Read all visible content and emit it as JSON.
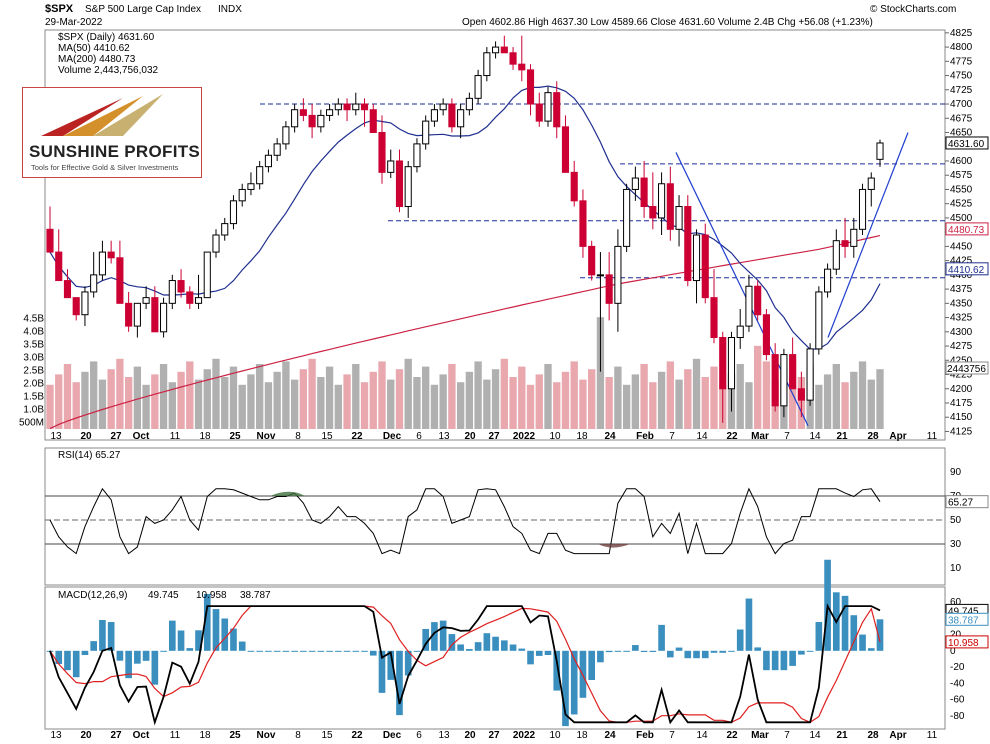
{
  "header": {
    "symbol": "$SPX",
    "description": "S&P 500 Large Cap Index",
    "exchange": "INDX",
    "date": "29-Mar-2022",
    "ohlc": "Open 4602.86  High 4637.30  Low 4589.66  Close 4631.60  Volume 2.4B  Chg +56.08 (+1.23%)",
    "credit": "© StockCharts.com"
  },
  "legend": {
    "price": "$SPX (Daily) 4631.60",
    "ma50": "MA(50) 4410.62",
    "ma200": "MA(200) 4480.73",
    "volume": "Volume 2,443,756,032"
  },
  "logo": {
    "name": "SUNSHINE PROFITS",
    "tagline": "Tools for Effective Gold & Silver Investments"
  },
  "colors": {
    "up": "#000000",
    "down": "#cc0033",
    "ma50": "#1f2f8f",
    "ma200": "#cc2244",
    "vol_up": "#b0b0b0",
    "vol_down": "#e8a8ae",
    "macd_hist": "#3a8fbf",
    "trend": "#1f3fcf"
  },
  "chart_data": [
    {
      "type": "candlestick",
      "title": "$SPX S&P 500 Large Cap Index INDX",
      "ylim": [
        4110,
        4830
      ],
      "y_ticks": [
        4125,
        4150,
        4175,
        4200,
        4225,
        4250,
        4275,
        4300,
        4325,
        4350,
        4375,
        4400,
        4425,
        4450,
        4475,
        4500,
        4525,
        4550,
        4575,
        4600,
        4625,
        4650,
        4675,
        4700,
        4725,
        4750,
        4775,
        4800,
        4825
      ],
      "x_tick_labels": [
        "13",
        "20",
        "27",
        "Oct",
        "11",
        "18",
        "25",
        "Nov",
        "8",
        "15",
        "22",
        "Dec",
        "6",
        "13",
        "20",
        "27",
        "2022",
        "10",
        "18",
        "24",
        "Feb",
        "7",
        "14",
        "22",
        "Mar",
        "7",
        "14",
        "21",
        "28",
        "Apr",
        "11"
      ],
      "bars": [
        [
          4480,
          4520,
          4470,
          4440
        ],
        [
          4440,
          4480,
          4430,
          4390
        ],
        [
          4390,
          4410,
          4360,
          4360
        ],
        [
          4360,
          4360,
          4320,
          4330
        ],
        [
          4330,
          4380,
          4310,
          4370
        ],
        [
          4370,
          4440,
          4360,
          4400
        ],
        [
          4400,
          4460,
          4390,
          4440
        ],
        [
          4440,
          4460,
          4420,
          4430
        ],
        [
          4430,
          4460,
          4390,
          4350
        ],
        [
          4350,
          4370,
          4300,
          4310
        ],
        [
          4310,
          4350,
          4290,
          4350
        ],
        [
          4350,
          4380,
          4340,
          4360
        ],
        [
          4360,
          4380,
          4300,
          4300
        ],
        [
          4300,
          4360,
          4290,
          4350
        ],
        [
          4350,
          4400,
          4340,
          4390
        ],
        [
          4390,
          4410,
          4360,
          4370
        ],
        [
          4370,
          4380,
          4340,
          4350
        ],
        [
          4350,
          4400,
          4340,
          4360
        ],
        [
          4360,
          4440,
          4360,
          4440
        ],
        [
          4440,
          4480,
          4430,
          4470
        ],
        [
          4470,
          4500,
          4460,
          4490
        ],
        [
          4490,
          4540,
          4480,
          4530
        ],
        [
          4530,
          4560,
          4520,
          4550
        ],
        [
          4550,
          4580,
          4540,
          4560
        ],
        [
          4560,
          4600,
          4550,
          4590
        ],
        [
          4590,
          4620,
          4580,
          4610
        ],
        [
          4610,
          4640,
          4600,
          4630
        ],
        [
          4630,
          4670,
          4620,
          4660
        ],
        [
          4660,
          4700,
          4650,
          4690
        ],
        [
          4690,
          4710,
          4670,
          4680
        ],
        [
          4680,
          4700,
          4640,
          4660
        ],
        [
          4660,
          4690,
          4650,
          4680
        ],
        [
          4680,
          4700,
          4670,
          4690
        ],
        [
          4690,
          4710,
          4680,
          4700
        ],
        [
          4700,
          4710,
          4670,
          4690
        ],
        [
          4690,
          4720,
          4680,
          4700
        ],
        [
          4700,
          4710,
          4660,
          4690
        ],
        [
          4690,
          4700,
          4650,
          4650
        ],
        [
          4650,
          4680,
          4560,
          4580
        ],
        [
          4580,
          4620,
          4570,
          4600
        ],
        [
          4600,
          4620,
          4510,
          4520
        ],
        [
          4520,
          4600,
          4500,
          4590
        ],
        [
          4590,
          4640,
          4580,
          4630
        ],
        [
          4630,
          4680,
          4620,
          4670
        ],
        [
          4670,
          4700,
          4660,
          4690
        ],
        [
          4690,
          4710,
          4680,
          4700
        ],
        [
          4700,
          4710,
          4650,
          4660
        ],
        [
          4660,
          4700,
          4640,
          4690
        ],
        [
          4690,
          4720,
          4680,
          4710
        ],
        [
          4710,
          4760,
          4700,
          4750
        ],
        [
          4750,
          4800,
          4740,
          4790
        ],
        [
          4790,
          4810,
          4780,
          4800
        ],
        [
          4800,
          4820,
          4790,
          4790
        ],
        [
          4790,
          4800,
          4760,
          4770
        ],
        [
          4770,
          4820,
          4740,
          4760
        ],
        [
          4760,
          4770,
          4680,
          4700
        ],
        [
          4700,
          4720,
          4660,
          4670
        ],
        [
          4670,
          4730,
          4660,
          4720
        ],
        [
          4720,
          4740,
          4640,
          4660
        ],
        [
          4660,
          4680,
          4580,
          4580
        ],
        [
          4580,
          4600,
          4520,
          4530
        ],
        [
          4530,
          4550,
          4430,
          4450
        ],
        [
          4450,
          4460,
          4390,
          4400
        ],
        [
          4400,
          4440,
          4230,
          4400
        ],
        [
          4400,
          4440,
          4320,
          4350
        ],
        [
          4350,
          4480,
          4300,
          4450
        ],
        [
          4450,
          4560,
          4440,
          4550
        ],
        [
          4550,
          4590,
          4530,
          4570
        ],
        [
          4570,
          4600,
          4500,
          4520
        ],
        [
          4520,
          4580,
          4480,
          4500
        ],
        [
          4500,
          4580,
          4470,
          4560
        ],
        [
          4560,
          4590,
          4460,
          4480
        ],
        [
          4480,
          4540,
          4450,
          4520
        ],
        [
          4520,
          4540,
          4380,
          4390
        ],
        [
          4390,
          4480,
          4350,
          4470
        ],
        [
          4470,
          4490,
          4350,
          4360
        ],
        [
          4360,
          4410,
          4280,
          4290
        ],
        [
          4290,
          4300,
          4140,
          4200
        ],
        [
          4200,
          4300,
          4160,
          4290
        ],
        [
          4290,
          4340,
          4270,
          4310
        ],
        [
          4310,
          4400,
          4300,
          4380
        ],
        [
          4380,
          4390,
          4320,
          4330
        ],
        [
          4330,
          4340,
          4250,
          4260
        ],
        [
          4260,
          4280,
          4160,
          4170
        ],
        [
          4170,
          4270,
          4150,
          4260
        ],
        [
          4260,
          4290,
          4200,
          4200
        ],
        [
          4200,
          4230,
          4150,
          4180
        ],
        [
          4180,
          4280,
          4170,
          4270
        ],
        [
          4270,
          4380,
          4260,
          4370
        ],
        [
          4370,
          4420,
          4360,
          4410
        ],
        [
          4410,
          4480,
          4400,
          4460
        ],
        [
          4460,
          4500,
          4430,
          4450
        ],
        [
          4450,
          4500,
          4430,
          4480
        ],
        [
          4480,
          4560,
          4470,
          4550
        ],
        [
          4550,
          4580,
          4520,
          4570
        ],
        [
          4602.86,
          4637.3,
          4589.66,
          4631.6
        ]
      ],
      "horizontal_levels": [
        4700,
        4595,
        4495,
        4395
      ],
      "last_price": 4631.6,
      "ma50_last": 4410.62,
      "ma200_last": 4480.73,
      "volume_axis_labels": [
        "500M",
        "1.0B",
        "1.5B",
        "2.0B",
        "2.5B",
        "3.0B",
        "3.5B",
        "4.0B",
        "4.5B"
      ],
      "volume_last_label": "2443756",
      "volume_last": 2443756032
    },
    {
      "type": "line",
      "title": "RSI(14) 65.27",
      "ylim": [
        0,
        100
      ],
      "y_ticks": [
        10,
        30,
        50,
        70,
        90
      ],
      "last": 65.27,
      "last_label": "65.27"
    },
    {
      "type": "line+bar",
      "title": "MACD(12,26,9)",
      "macd": "49.745",
      "signal": "10.958",
      "histogram": "38.787",
      "ylim": [
        -95,
        65
      ],
      "y_ticks": [
        -80,
        -60,
        -40,
        -20,
        0,
        20,
        40,
        60
      ]
    }
  ]
}
